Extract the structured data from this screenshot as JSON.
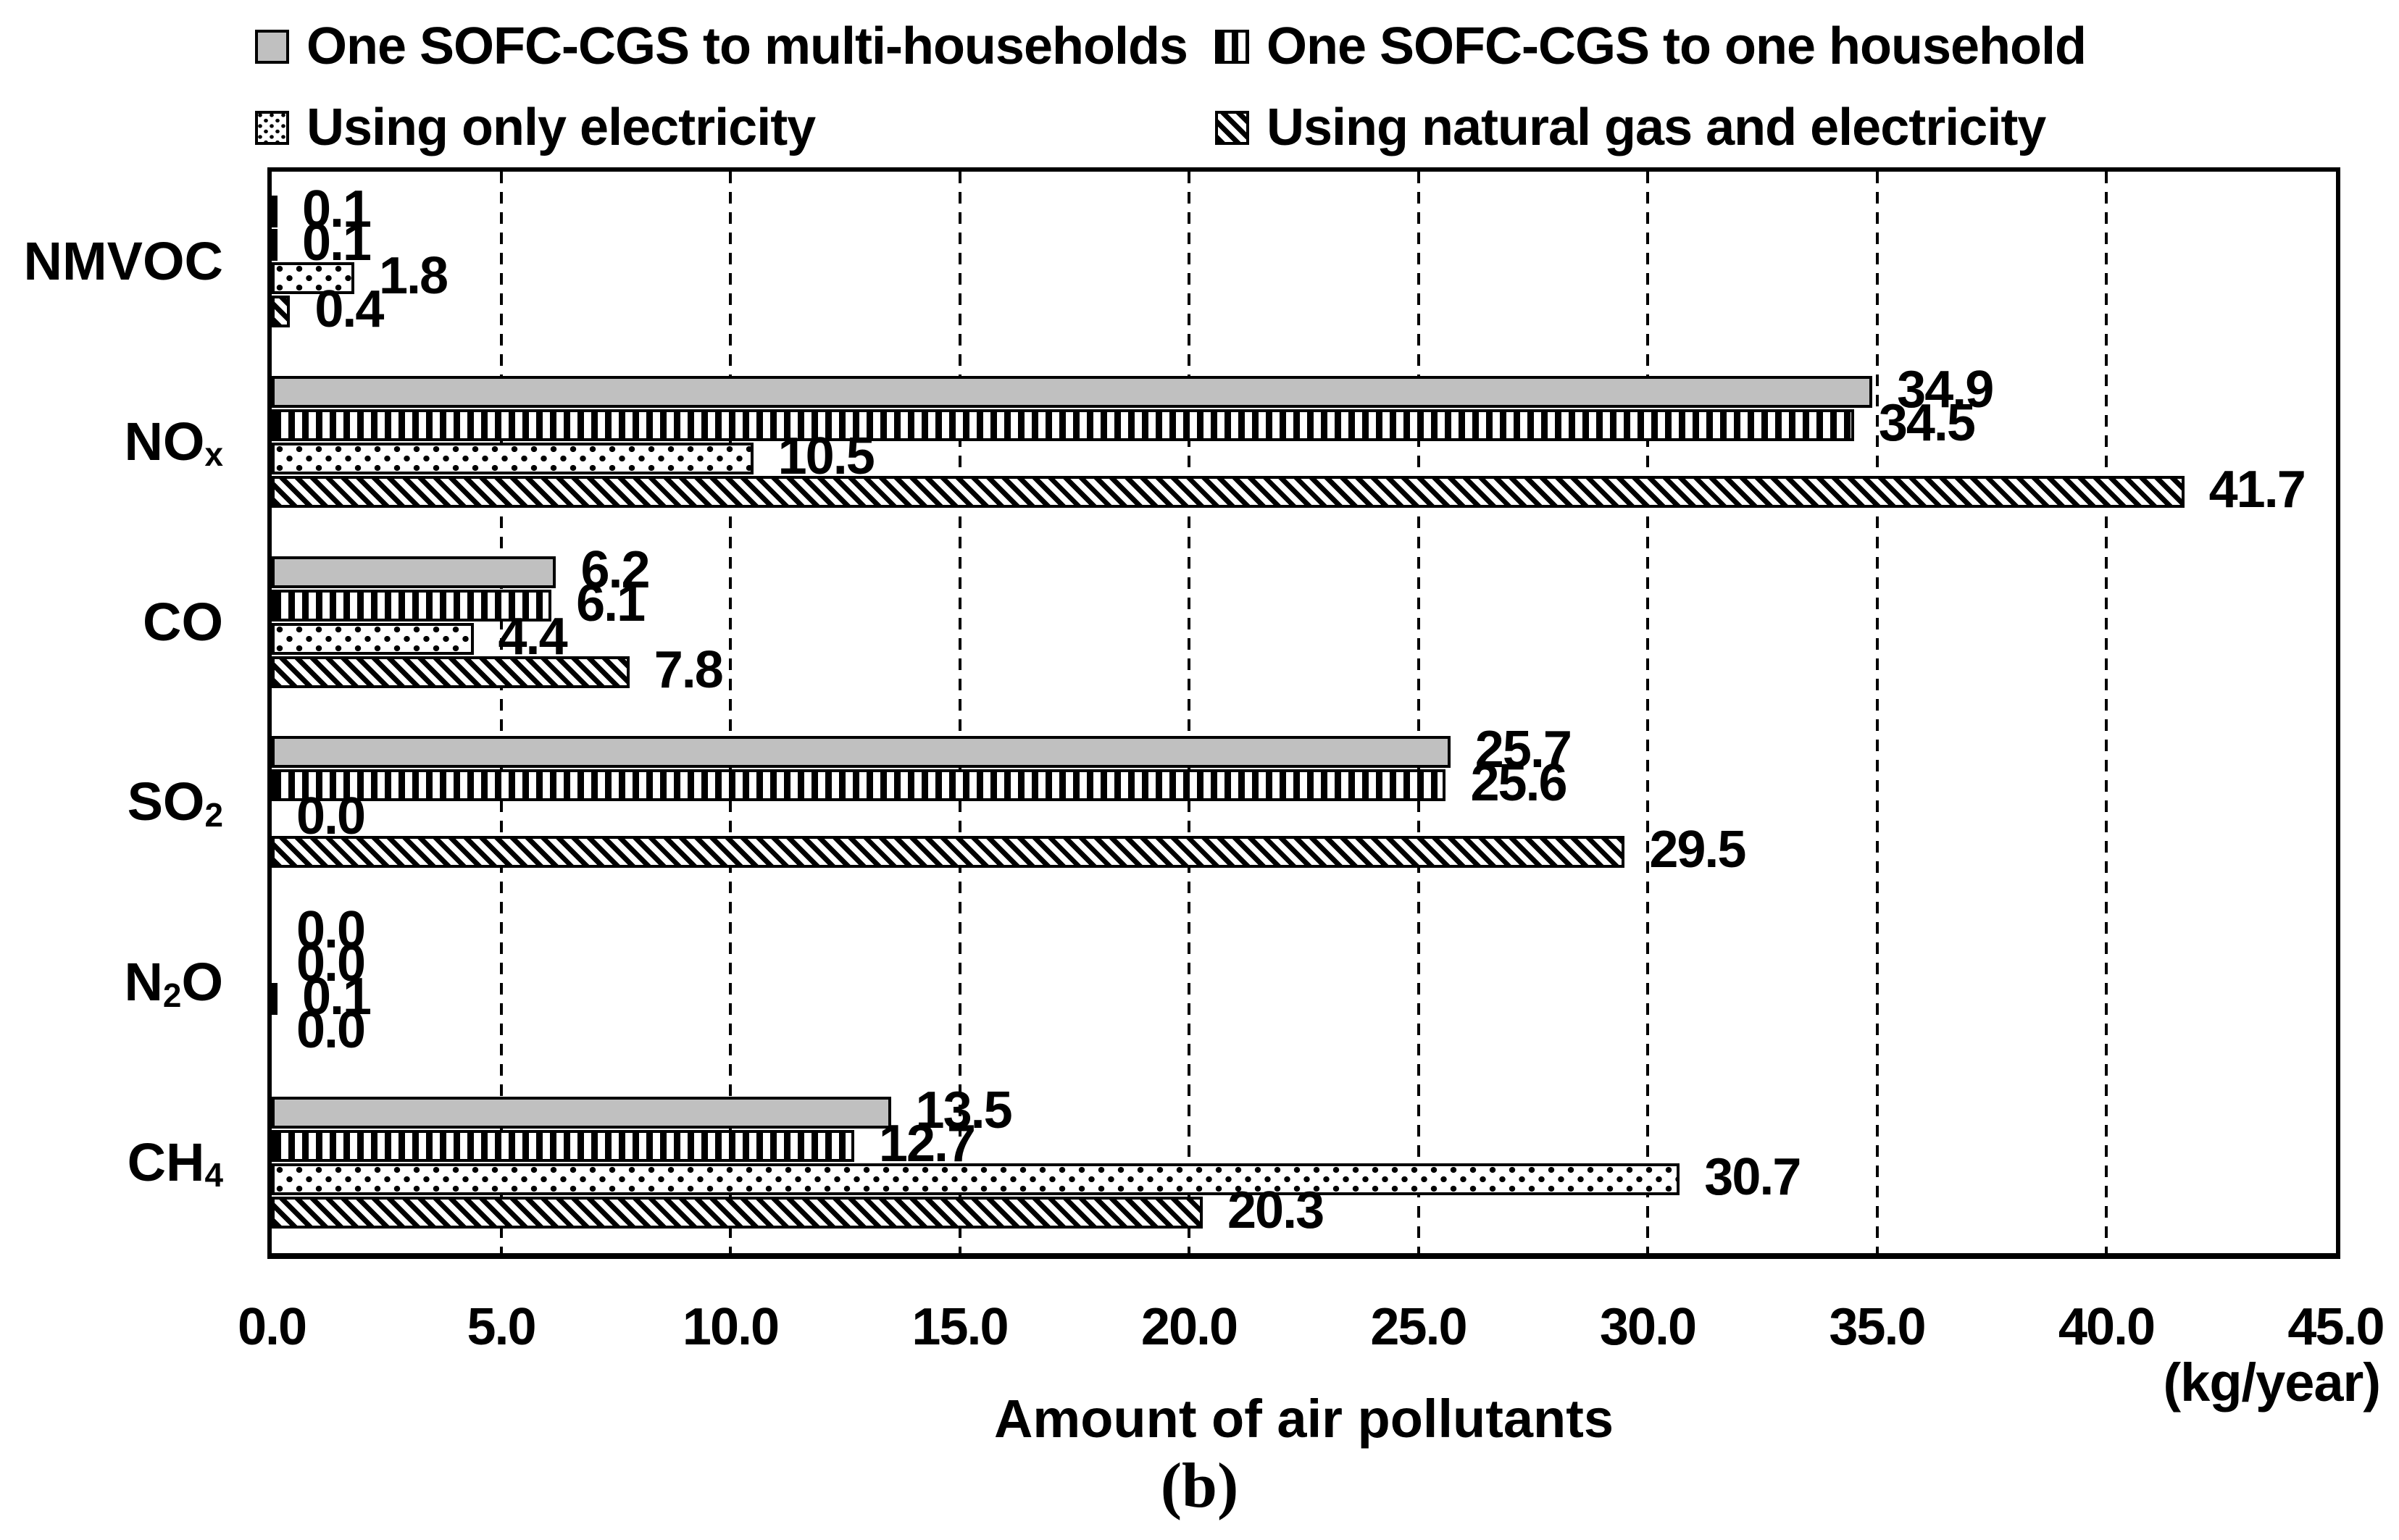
{
  "colors": {
    "bar_gray": "#c0c0c0",
    "ink": "#000000"
  },
  "chart_data": {
    "type": "bar",
    "orientation": "horizontal",
    "xlabel": "Amount of air pollutants",
    "unit_label": "(kg/year)",
    "caption": "(b)",
    "xlim": [
      0,
      45
    ],
    "xticks": [
      0,
      5,
      10,
      15,
      20,
      25,
      30,
      35,
      40,
      45
    ],
    "grid": "dashed-vertical-every-5",
    "legend_position": "top",
    "value_label_decimals": 1,
    "categories": [
      "NMVOC",
      "NOx",
      "CO",
      "SO2",
      "N2O",
      "CH4"
    ],
    "categories_rich": [
      [
        {
          "t": "NMVOC"
        }
      ],
      [
        {
          "t": "NO"
        },
        {
          "t": "x",
          "sub": true
        }
      ],
      [
        {
          "t": "CO"
        }
      ],
      [
        {
          "t": "SO"
        },
        {
          "t": "2",
          "sub": true
        }
      ],
      [
        {
          "t": "N"
        },
        {
          "t": "2",
          "sub": true
        },
        {
          "t": "O"
        }
      ],
      [
        {
          "t": "CH"
        },
        {
          "t": "4",
          "sub": true
        }
      ]
    ],
    "series": [
      {
        "name": "One SOFC-CGS to multi-households",
        "pattern": "solid-gray",
        "color": "#c0c0c0",
        "values": [
          0.1,
          34.9,
          6.2,
          25.7,
          0.0,
          13.5
        ]
      },
      {
        "name": "One SOFC-CGS to one household",
        "pattern": "vertical-stripes",
        "values": [
          0.1,
          34.5,
          6.1,
          25.6,
          0.0,
          12.7
        ]
      },
      {
        "name": "Using only electricity",
        "pattern": "dots",
        "values": [
          1.8,
          10.5,
          4.4,
          0.0,
          0.1,
          30.7
        ]
      },
      {
        "name": "Using natural gas and electricity",
        "pattern": "diagonal-stripes",
        "values": [
          0.4,
          41.7,
          7.8,
          29.5,
          0.0,
          20.3
        ]
      }
    ]
  }
}
